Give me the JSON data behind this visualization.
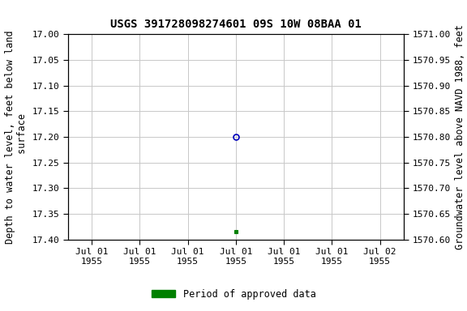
{
  "title": "USGS 391728098274601 09S 10W 08BAA 01",
  "ylabel_left": "Depth to water level, feet below land\n surface",
  "ylabel_right": "Groundwater level above NAVD 1988, feet",
  "ylim_left": [
    17.0,
    17.4
  ],
  "ylim_right": [
    1570.6,
    1571.0
  ],
  "yticks_left": [
    17.0,
    17.05,
    17.1,
    17.15,
    17.2,
    17.25,
    17.3,
    17.35,
    17.4
  ],
  "yticks_right": [
    1570.6,
    1570.65,
    1570.7,
    1570.75,
    1570.8,
    1570.85,
    1570.9,
    1570.95,
    1571.0
  ],
  "circle_value": 17.2,
  "square_value": 17.385,
  "circle_color": "#0000bb",
  "square_color": "#008000",
  "background_color": "#ffffff",
  "grid_color": "#c8c8c8",
  "legend_label": "Period of approved data",
  "legend_color": "#008000",
  "title_fontsize": 10,
  "axis_label_fontsize": 8.5,
  "tick_fontsize": 8,
  "xtick_labels": [
    "Jul 01\n1955",
    "Jul 01\n1955",
    "Jul 01\n1955",
    "Jul 01\n1955",
    "Jul 01\n1955",
    "Jul 01\n1955",
    "Jul 02\n1955"
  ]
}
